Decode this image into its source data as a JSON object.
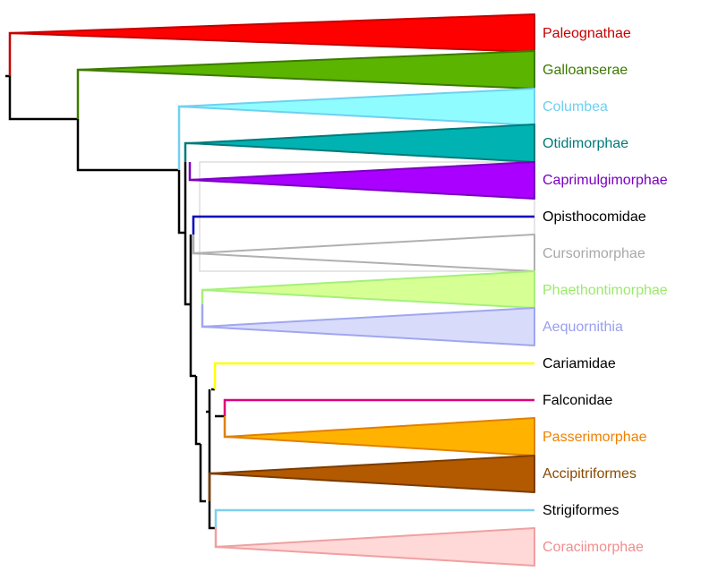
{
  "tree": {
    "taxa": [
      {
        "label": "Paleognathae",
        "color": "#ff0000",
        "collapsed": true,
        "stroke": "#c40000"
      },
      {
        "label": "Galloanserae",
        "color": "#5ab400",
        "collapsed": true,
        "stroke": "#3c7a00"
      },
      {
        "label": "Columbea",
        "color": "#8ffcff",
        "collapsed": true,
        "stroke": "#6fd0f0"
      },
      {
        "label": "Otidimorphae",
        "color": "#00b2b2",
        "collapsed": true,
        "stroke": "#007a7a"
      },
      {
        "label": "Caprimulgimorphae",
        "color": "#aa00ff",
        "collapsed": true,
        "stroke": "#7a00c0"
      },
      {
        "label": "Opisthocomidae",
        "color": "#0000bb",
        "collapsed": false,
        "text_color": "#000000"
      },
      {
        "label": "Cursorimorphae",
        "color": "#ffffff",
        "collapsed": true,
        "stroke": "#b0b0b0",
        "text_color": "#a8a8a8"
      },
      {
        "label": "Phaethontimorphae",
        "color": "#d6ff94",
        "collapsed": true,
        "stroke": "#a6f07a",
        "text_color": "#9bea6a"
      },
      {
        "label": "Aequornithia",
        "color": "#d8dcfa",
        "collapsed": true,
        "stroke": "#a0a6f0",
        "text_color": "#9aa0ee"
      },
      {
        "label": "Cariamidae",
        "color": "#ffff00",
        "collapsed": false,
        "text_color": "#000000"
      },
      {
        "label": "Falconidae",
        "color": "#e0007a",
        "collapsed": false,
        "text_color": "#000000"
      },
      {
        "label": "Passerimorphae",
        "color": "#ffb300",
        "collapsed": true,
        "stroke": "#e08000",
        "text_color": "#f08000"
      },
      {
        "label": "Accipitriformes",
        "color": "#b35900",
        "collapsed": true,
        "stroke": "#7a3c00",
        "text_color": "#8a4a00"
      },
      {
        "label": "Strigiformes",
        "color": "#7fd0f0",
        "collapsed": false,
        "text_color": "#000000"
      },
      {
        "label": "Coraciimorphae",
        "color": "#ffd8d8",
        "collapsed": true,
        "stroke": "#f0a0a0",
        "text_color": "#f08f8f"
      }
    ],
    "highlight_box_color": "#cccccc"
  }
}
